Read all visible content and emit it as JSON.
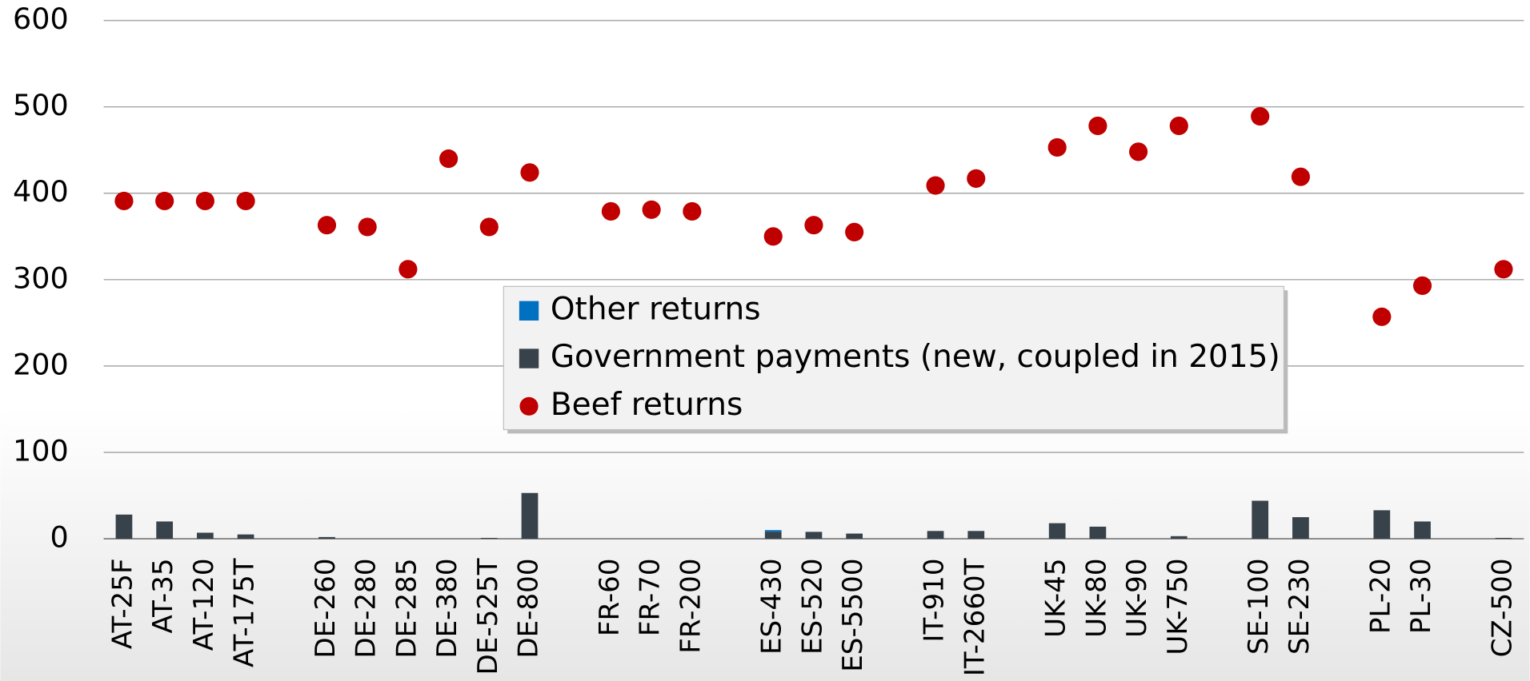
{
  "chart_data": {
    "type": "bar",
    "categories": [
      "AT-25F",
      "AT-35",
      "AT-120",
      "AT-175T",
      null,
      "DE-260",
      "DE-280",
      "DE-285",
      "DE-380",
      "DE-525T",
      "DE-800",
      null,
      "FR-60",
      "FR-70",
      "FR-200",
      null,
      "ES-430",
      "ES-520",
      "ES-5500",
      null,
      "IT-910",
      "IT-2660T",
      null,
      "UK-45",
      "UK-80",
      "UK-90",
      "UK-750",
      null,
      "SE-100",
      "SE-230",
      null,
      "PL-20",
      "PL-30",
      null,
      "CZ-500"
    ],
    "series": [
      {
        "name": "Other returns",
        "type": "bar",
        "color": "#0070c0",
        "values": [
          0,
          0,
          0,
          0,
          null,
          0,
          0,
          0,
          0,
          0,
          0,
          null,
          0,
          0,
          0,
          null,
          2,
          0,
          0,
          null,
          0,
          0,
          null,
          0,
          0,
          0,
          0,
          null,
          0,
          0,
          null,
          0,
          0,
          null,
          0
        ]
      },
      {
        "name": "Government payments (new, coupled in 2015)",
        "type": "bar",
        "color": "#37424a",
        "values": [
          28,
          20,
          7,
          5,
          null,
          2,
          0,
          0,
          0,
          1,
          53,
          null,
          0,
          0,
          0,
          null,
          8,
          8,
          6,
          null,
          9,
          9,
          null,
          18,
          14,
          0,
          3,
          null,
          44,
          25,
          null,
          33,
          20,
          null,
          1
        ]
      },
      {
        "name": "Beef returns",
        "type": "scatter",
        "color": "#c00000",
        "values": [
          391,
          391,
          391,
          391,
          null,
          363,
          361,
          312,
          440,
          361,
          424,
          null,
          379,
          381,
          379,
          null,
          350,
          363,
          355,
          null,
          409,
          417,
          null,
          453,
          478,
          448,
          478,
          null,
          489,
          419,
          null,
          257,
          293,
          null,
          312
        ]
      }
    ],
    "ylim": [
      0,
      600
    ],
    "yticks": [
      0,
      100,
      200,
      300,
      400,
      500,
      600
    ],
    "grid": true,
    "legend": "center"
  }
}
